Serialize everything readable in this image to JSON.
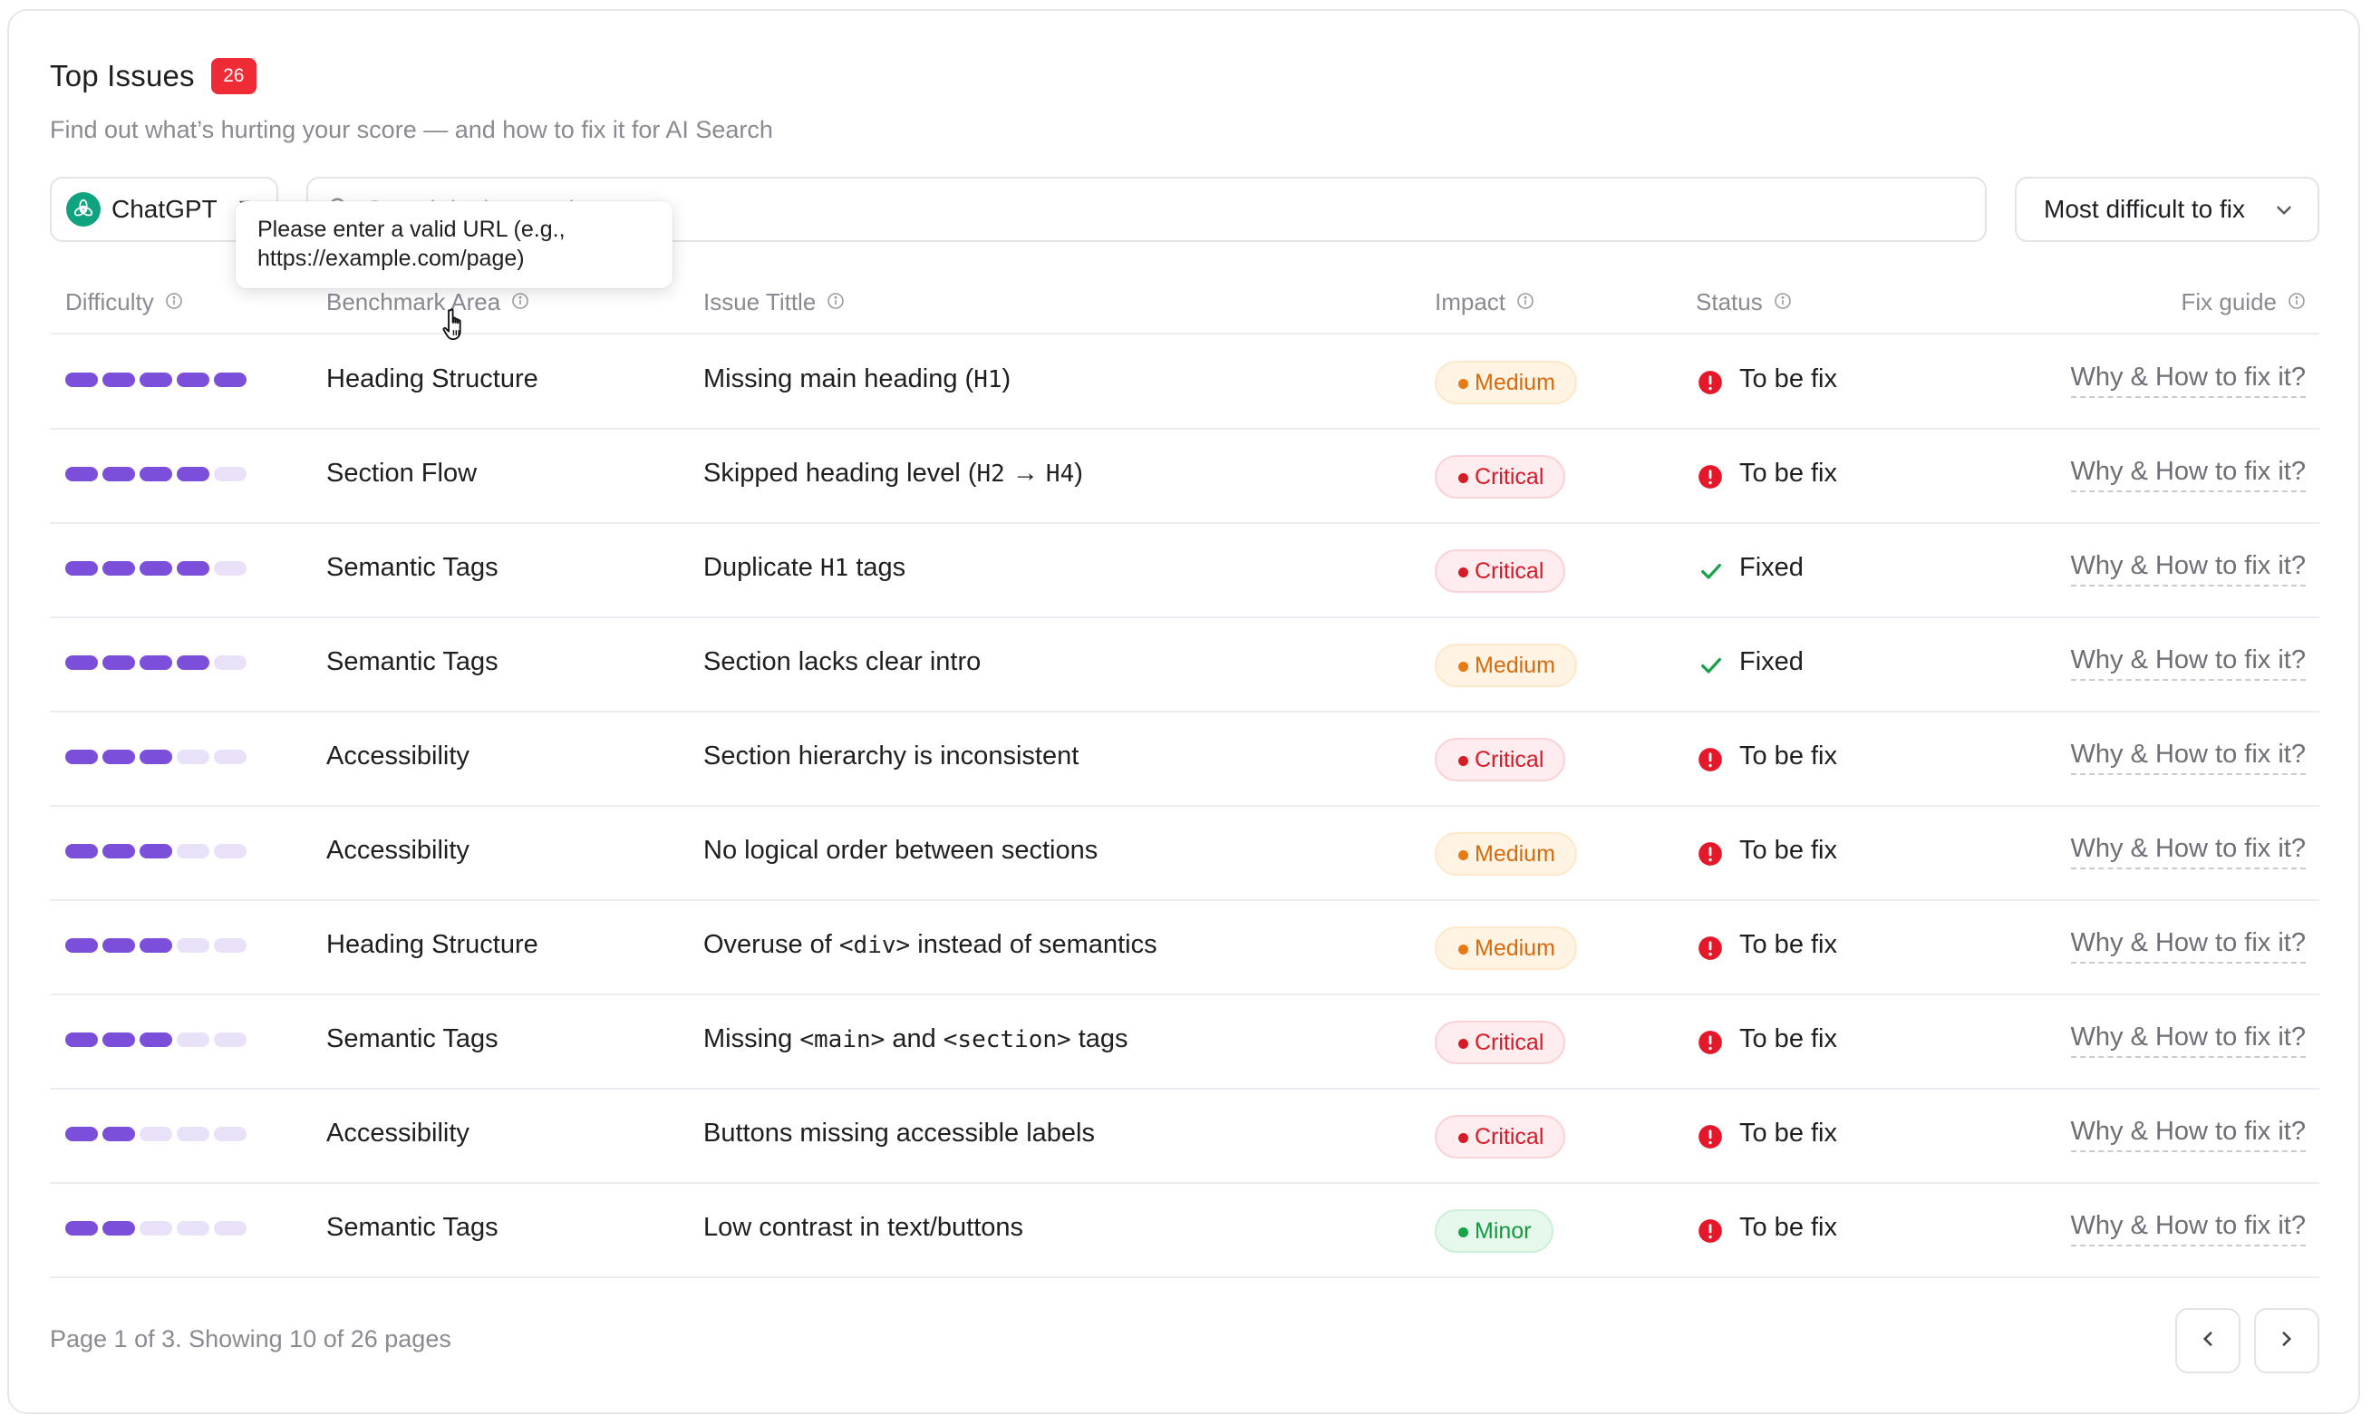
{
  "header": {
    "title": "Top Issues",
    "count": "26",
    "subtitle": "Find out what’s hurting your score — and how to fix it for AI Search"
  },
  "toolbar": {
    "model": "ChatGPT",
    "url_input_placeholder": "Search by keyword",
    "url_tooltip": "Please enter a valid URL (e.g., https://example.com/page)",
    "sort": "Most difficult to fix"
  },
  "table": {
    "columns": {
      "difficulty": "Difficulty",
      "area": "Benchmark Area",
      "title": "Issue Tittle",
      "impact": "Impact",
      "status": "Status",
      "fix": "Fix guide"
    },
    "rows": [
      {
        "difficulty": 5,
        "area": "Heading Structure",
        "title_parts": [
          {
            "t": "Missing main heading ("
          },
          {
            "t": "H1",
            "code": true
          },
          {
            "t": ")"
          }
        ],
        "impact": "Medium",
        "impact_level": "medium",
        "status": "To be fix",
        "status_type": "open",
        "fix": "Why & How to fix it?"
      },
      {
        "difficulty": 4,
        "area": "Section Flow",
        "title_parts": [
          {
            "t": "Skipped heading level ("
          },
          {
            "t": "H2",
            "code": true
          },
          {
            "t": " → "
          },
          {
            "t": "H4",
            "code": true
          },
          {
            "t": ")"
          }
        ],
        "impact": "Critical",
        "impact_level": "critical",
        "status": "To be fix",
        "status_type": "open",
        "fix": "Why & How to fix it?"
      },
      {
        "difficulty": 4,
        "area": "Semantic Tags",
        "title_parts": [
          {
            "t": "Duplicate "
          },
          {
            "t": "H1",
            "code": true
          },
          {
            "t": " tags"
          }
        ],
        "impact": "Critical",
        "impact_level": "critical",
        "status": "Fixed",
        "status_type": "fixed",
        "fix": "Why & How to fix it?"
      },
      {
        "difficulty": 4,
        "area": "Semantic Tags",
        "title_parts": [
          {
            "t": "Section lacks clear intro"
          }
        ],
        "impact": "Medium",
        "impact_level": "medium",
        "status": "Fixed",
        "status_type": "fixed",
        "fix": "Why & How to fix it?"
      },
      {
        "difficulty": 3,
        "area": "Accessibility",
        "title_parts": [
          {
            "t": "Section hierarchy is inconsistent"
          }
        ],
        "impact": "Critical",
        "impact_level": "critical",
        "status": "To be fix",
        "status_type": "open",
        "fix": "Why & How to fix it?"
      },
      {
        "difficulty": 3,
        "area": "Accessibility",
        "title_parts": [
          {
            "t": "No logical order between sections"
          }
        ],
        "impact": "Medium",
        "impact_level": "medium",
        "status": "To be fix",
        "status_type": "open",
        "fix": "Why & How to fix it?"
      },
      {
        "difficulty": 3,
        "area": "Heading Structure",
        "title_parts": [
          {
            "t": "Overuse of "
          },
          {
            "t": "<div>",
            "code": true
          },
          {
            "t": " instead of semantics"
          }
        ],
        "impact": "Medium",
        "impact_level": "medium",
        "status": "To be fix",
        "status_type": "open",
        "fix": "Why & How to fix it?"
      },
      {
        "difficulty": 3,
        "area": "Semantic Tags",
        "title_parts": [
          {
            "t": "Missing "
          },
          {
            "t": "<main>",
            "code": true
          },
          {
            "t": " and "
          },
          {
            "t": "<section>",
            "code": true
          },
          {
            "t": " tags"
          }
        ],
        "impact": "Critical",
        "impact_level": "critical",
        "status": "To be fix",
        "status_type": "open",
        "fix": "Why & How to fix it?"
      },
      {
        "difficulty": 2,
        "area": "Accessibility",
        "title_parts": [
          {
            "t": "Buttons missing accessible labels"
          }
        ],
        "impact": "Critical",
        "impact_level": "critical",
        "status": "To be fix",
        "status_type": "open",
        "fix": "Why & How to fix it?"
      },
      {
        "difficulty": 2,
        "area": "Semantic Tags",
        "title_parts": [
          {
            "t": "Low contrast in text/buttons"
          }
        ],
        "impact": "Minor",
        "impact_level": "minor",
        "status": "To be fix",
        "status_type": "open",
        "fix": "Why & How to fix it?"
      }
    ]
  },
  "footer": {
    "page_info": "Page 1 of 3. Showing 10 of 26 pages"
  },
  "colors": {
    "brand_purple": "#7b4fd9",
    "badge_red": "#ef2b36",
    "fixed_green": "#16a34a",
    "open_red": "#e5172a",
    "chatgpt_green": "#10a37f"
  },
  "icons": {
    "model": "chatgpt-logo-icon",
    "search": "search-icon",
    "open_status": "alert-circle-icon",
    "fixed_status": "checkmark-icon",
    "header_info": "info-icon",
    "prev": "chevron-left-icon",
    "next": "chevron-right-icon"
  }
}
